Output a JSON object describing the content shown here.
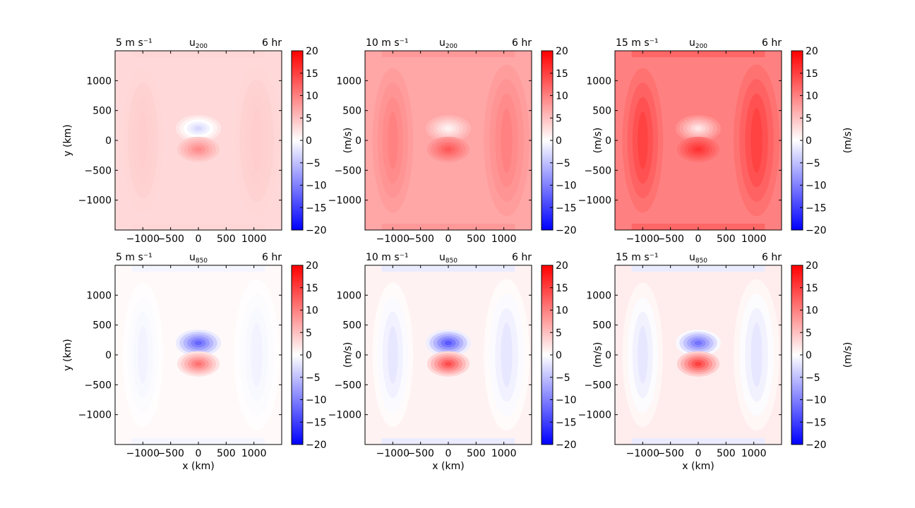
{
  "chart_data": {
    "type": "heatmap",
    "colorbar": {
      "ticks": [
        20,
        15,
        10,
        5,
        0,
        -5,
        -10,
        -15,
        -20
      ],
      "tick_labels": [
        "20",
        "15",
        "10",
        "5",
        "0",
        "−5",
        "−10",
        "−15",
        "−20"
      ],
      "label": "(m/s)",
      "range": [
        -20,
        20
      ],
      "colormap": "bwr",
      "colors": {
        "negative": "#0000ff",
        "zero": "#ffffff",
        "positive": "#ff0000"
      }
    },
    "axes": {
      "x_ticks": [
        -1000,
        -500,
        0,
        500,
        1000
      ],
      "x_tick_labels": [
        "−1000",
        "−500",
        "0",
        "500",
        "1000"
      ],
      "y_ticks": [
        1000,
        500,
        0,
        -500,
        -1000
      ],
      "y_tick_labels": [
        "1000",
        "500",
        "0",
        "−500",
        "−1000"
      ],
      "xlim": [
        -1500,
        1500
      ],
      "ylim": [
        -1500,
        1500
      ],
      "xlabel": "x (km)",
      "ylabel": "y (km)"
    },
    "time_label": "6 hr",
    "panels": [
      {
        "row": 0,
        "col": 0,
        "left_title": "5 m s⁻¹",
        "var": "u",
        "level": "200",
        "background": 3,
        "edges": 4,
        "dipole_top": -3,
        "dipole_bottom": 9
      },
      {
        "row": 0,
        "col": 1,
        "left_title": "10 m s⁻¹",
        "var": "u",
        "level": "200",
        "background": 7,
        "edges": 10,
        "dipole_top": 1,
        "dipole_bottom": 13
      },
      {
        "row": 0,
        "col": 2,
        "left_title": "15 m s⁻¹",
        "var": "u",
        "level": "200",
        "background": 10,
        "edges": 15,
        "dipole_top": 2,
        "dipole_bottom": 16
      },
      {
        "row": 1,
        "col": 0,
        "left_title": "5 m s⁻¹",
        "var": "u",
        "level": "850",
        "background": 0.5,
        "edges": -1,
        "dipole_top": -12,
        "dipole_bottom": 11
      },
      {
        "row": 1,
        "col": 1,
        "left_title": "10 m s⁻¹",
        "var": "u",
        "level": "850",
        "background": 1,
        "edges": -2,
        "dipole_top": -13,
        "dipole_bottom": 14
      },
      {
        "row": 1,
        "col": 2,
        "left_title": "15 m s⁻¹",
        "var": "u",
        "level": "850",
        "background": 1.5,
        "edges": -2,
        "dipole_top": -11,
        "dipole_bottom": 15
      }
    ]
  }
}
